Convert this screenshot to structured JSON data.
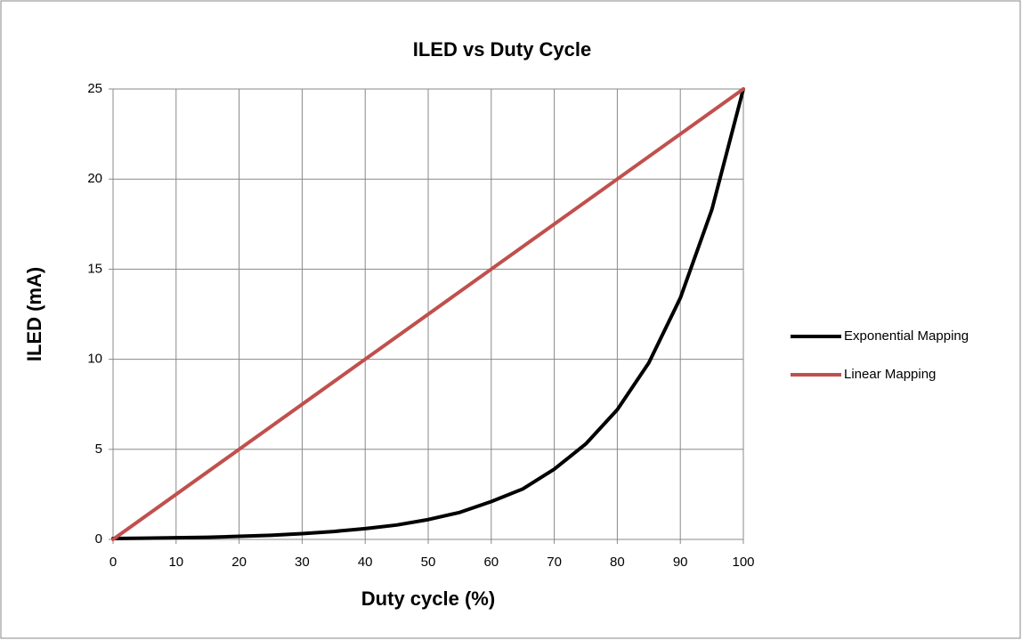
{
  "chart_data": {
    "type": "line",
    "title": "ILED vs Duty Cycle",
    "xlabel": "Duty cycle (%)",
    "ylabel": "ILED (mA)",
    "series": [
      {
        "name": "Exponential Mapping",
        "color": "#000000",
        "x": [
          0,
          5,
          10,
          15,
          20,
          25,
          30,
          35,
          40,
          45,
          50,
          55,
          60,
          65,
          70,
          75,
          80,
          85,
          90,
          95,
          100
        ],
        "values": [
          0.05,
          0.07,
          0.09,
          0.12,
          0.17,
          0.23,
          0.32,
          0.44,
          0.6,
          0.8,
          1.1,
          1.5,
          2.1,
          2.8,
          3.9,
          5.3,
          7.2,
          9.8,
          13.4,
          18.3,
          25
        ]
      },
      {
        "name": "Linear Mapping",
        "color": "#c0504d",
        "x": [
          0,
          100
        ],
        "values": [
          0,
          25
        ]
      }
    ],
    "xlim": [
      0,
      100
    ],
    "xticks": [
      0,
      10,
      20,
      30,
      40,
      50,
      60,
      70,
      80,
      90,
      100
    ],
    "ylim": [
      0,
      25
    ],
    "yticks": [
      0,
      5,
      10,
      15,
      20,
      25
    ],
    "grid": true,
    "legend": "right"
  }
}
